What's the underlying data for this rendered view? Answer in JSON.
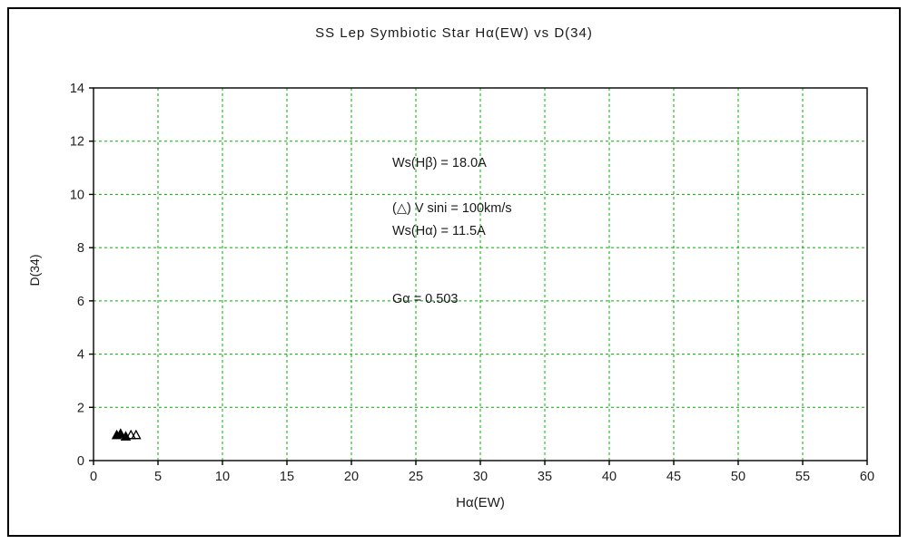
{
  "chart_data": {
    "type": "scatter",
    "title": "SS Lep  Symbiotic Star   Hα(EW) vs D(34)",
    "xlabel": "Hα(EW)",
    "ylabel": "D(34)",
    "xlim": [
      0,
      60
    ],
    "ylim": [
      0,
      14
    ],
    "xticks": [
      0,
      5,
      10,
      15,
      20,
      25,
      30,
      35,
      40,
      45,
      50,
      55,
      60
    ],
    "yticks": [
      0,
      2,
      4,
      6,
      8,
      10,
      12,
      14
    ],
    "grid": true,
    "grid_color": "#00b000",
    "axis_color": "#000000",
    "tick_label_color": "#222222",
    "marker": "triangle",
    "marker_color": "#000000",
    "points": [
      {
        "x": 1.8,
        "y": 0.95,
        "filled": true
      },
      {
        "x": 2.1,
        "y": 1.0,
        "filled": true
      },
      {
        "x": 2.5,
        "y": 0.9,
        "filled": true
      },
      {
        "x": 2.9,
        "y": 0.95,
        "filled": false
      },
      {
        "x": 3.3,
        "y": 0.95,
        "filled": false
      }
    ],
    "info_lines": [
      "Ws(Hβ) = 18.0A",
      "Ws(Hα) = 11.5A",
      "Gα = 0.503"
    ],
    "legend": "(△) V sini = 100km/s"
  }
}
